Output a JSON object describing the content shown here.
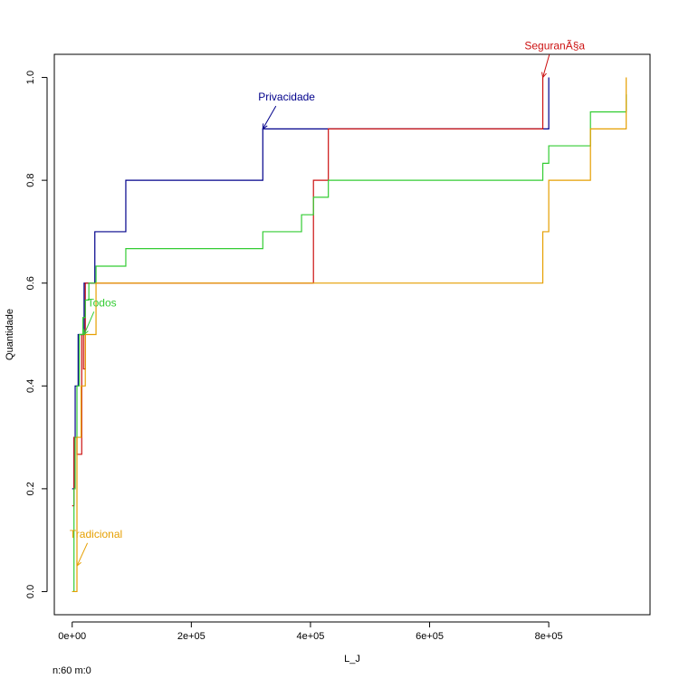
{
  "chart_data": {
    "type": "line",
    "xlabel": "L_J",
    "ylabel": "Quantidade",
    "xlim": [
      -30000,
      970000
    ],
    "ylim": [
      -0.045,
      1.045
    ],
    "x_ticks": [
      0,
      200000,
      400000,
      600000,
      800000
    ],
    "x_tick_labels": [
      "0e+00",
      "2e+05",
      "4e+05",
      "6e+05",
      "8e+05"
    ],
    "y_ticks": [
      0.0,
      0.2,
      0.4,
      0.6,
      0.8,
      1.0
    ],
    "y_tick_labels": [
      "0.0",
      "0.2",
      "0.4",
      "0.6",
      "0.8",
      "1.0"
    ],
    "grid": false,
    "legend": "none",
    "series": [
      {
        "name": "Privacidade",
        "color": "#00008b",
        "x": [
          0,
          3000,
          5000,
          7000,
          10000,
          20000,
          38000,
          90000,
          320000,
          800000
        ],
        "y": [
          0.2,
          0.3,
          0.4,
          0.4,
          0.5,
          0.6,
          0.7,
          0.8,
          0.9,
          1.0
        ]
      },
      {
        "name": "SeguranÃ§a",
        "color": "#cc1111",
        "x": [
          0,
          3000,
          8000,
          16000,
          19000,
          22000,
          385000,
          405000,
          430000,
          790000
        ],
        "y": [
          0.167,
          0.3,
          0.267,
          0.5,
          0.433,
          0.6,
          0.6,
          0.8,
          0.9,
          1.0
        ]
      },
      {
        "name": "Todos",
        "color": "#33cc33",
        "x": [
          0,
          3000,
          5000,
          8000,
          12000,
          18000,
          22000,
          28000,
          40000,
          90000,
          320000,
          385000,
          405000,
          430000,
          790000,
          800000,
          870000,
          930000
        ],
        "y": [
          0.0,
          0.2,
          0.3,
          0.4,
          0.5,
          0.533,
          0.567,
          0.6,
          0.633,
          0.667,
          0.7,
          0.733,
          0.767,
          0.8,
          0.833,
          0.867,
          0.933,
          0.967
        ]
      },
      {
        "name": "Tradicional",
        "color": "#e69f00",
        "x": [
          0,
          8000,
          15000,
          22000,
          30000,
          40000,
          790000,
          800000,
          870000,
          930000
        ],
        "y": [
          0.0,
          0.3,
          0.4,
          0.5,
          0.5,
          0.6,
          0.7,
          0.8,
          0.9,
          1.0
        ]
      }
    ],
    "annotations": [
      {
        "text": "Privacidade",
        "color": "#00008b",
        "text_x": 360000,
        "text_y": 0.955,
        "arrow_x": 320000,
        "arrow_y": 0.9
      },
      {
        "text": "SeguranÃ§a",
        "color": "#cc1111",
        "text_x": 810000,
        "text_y": 1.055,
        "arrow_x": 790000,
        "arrow_y": 1.0
      },
      {
        "text": "Todos",
        "color": "#33cc33",
        "text_x": 50000,
        "text_y": 0.555,
        "arrow_x": 20000,
        "arrow_y": 0.5
      },
      {
        "text": "Tradicional",
        "color": "#e69f00",
        "text_x": 40000,
        "text_y": 0.105,
        "arrow_x": 8000,
        "arrow_y": 0.05
      }
    ]
  },
  "footer": {
    "text": "n:60 m:0"
  }
}
